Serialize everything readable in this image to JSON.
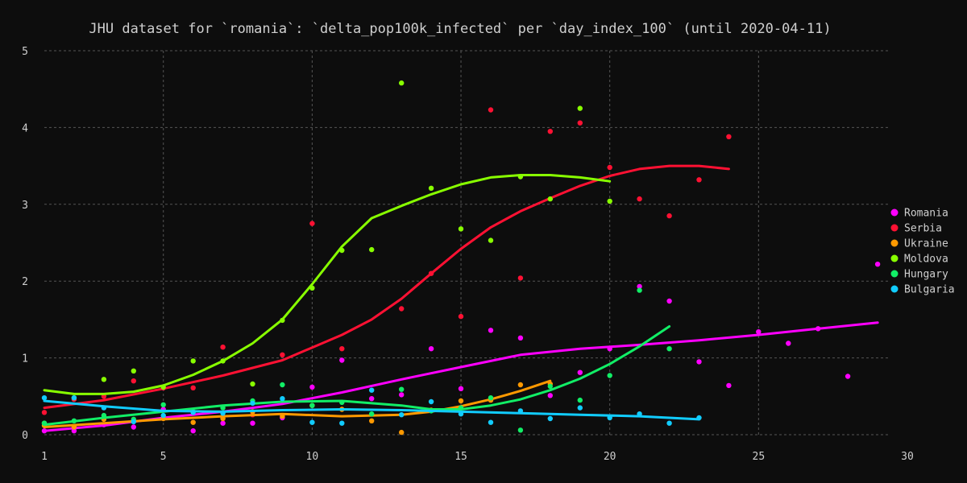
{
  "chart_data": {
    "type": "scatter",
    "title": "JHU dataset for `romania`: `delta_pop100k_infected` per `day_index_100` (until 2020-04-11)",
    "xlim": [
      1,
      30
    ],
    "ylim": [
      0,
      5
    ],
    "x_ticks": [
      1,
      5,
      10,
      15,
      20,
      25,
      30
    ],
    "y_ticks": [
      0,
      1,
      2,
      3,
      4,
      5
    ],
    "grid": true,
    "legend_position": "right",
    "series": [
      {
        "name": "Romania",
        "color": "#ff00ff",
        "points": [
          [
            1,
            0.05
          ],
          [
            2,
            0.05
          ],
          [
            3,
            0.13
          ],
          [
            4,
            0.1
          ],
          [
            5,
            0.33
          ],
          [
            6,
            0.05
          ],
          [
            7,
            0.15
          ],
          [
            8,
            0.15
          ],
          [
            9,
            0.22
          ],
          [
            10,
            0.62
          ],
          [
            11,
            0.97
          ],
          [
            12,
            0.47
          ],
          [
            13,
            0.52
          ],
          [
            14,
            1.12
          ],
          [
            15,
            0.6
          ],
          [
            16,
            1.36
          ],
          [
            17,
            1.26
          ],
          [
            18,
            0.51
          ],
          [
            19,
            0.81
          ],
          [
            20,
            1.12
          ],
          [
            21,
            1.93
          ],
          [
            22,
            1.74
          ],
          [
            23,
            0.95
          ],
          [
            24,
            0.64
          ],
          [
            25,
            1.34
          ],
          [
            26,
            1.19
          ],
          [
            27,
            1.38
          ],
          [
            28,
            0.76
          ],
          [
            29,
            2.22
          ]
        ],
        "trend": [
          [
            1,
            0.05
          ],
          [
            3,
            0.12
          ],
          [
            5,
            0.22
          ],
          [
            7,
            0.3
          ],
          [
            9,
            0.4
          ],
          [
            11,
            0.55
          ],
          [
            13,
            0.72
          ],
          [
            15,
            0.88
          ],
          [
            17,
            1.04
          ],
          [
            19,
            1.12
          ],
          [
            21,
            1.17
          ],
          [
            23,
            1.23
          ],
          [
            25,
            1.3
          ],
          [
            27,
            1.38
          ],
          [
            29,
            1.46
          ]
        ]
      },
      {
        "name": "Serbia",
        "color": "#ff1133",
        "points": [
          [
            1,
            0.29
          ],
          [
            2,
            0.46
          ],
          [
            3,
            0.5
          ],
          [
            4,
            0.7
          ],
          [
            5,
            0.61
          ],
          [
            6,
            0.61
          ],
          [
            7,
            1.14
          ],
          [
            8,
            0.26
          ],
          [
            9,
            1.04
          ],
          [
            10,
            2.75
          ],
          [
            11,
            1.12
          ],
          [
            13,
            1.64
          ],
          [
            14,
            2.1
          ],
          [
            15,
            1.54
          ],
          [
            16,
            4.23
          ],
          [
            17,
            2.04
          ],
          [
            18,
            3.95
          ],
          [
            19,
            4.06
          ],
          [
            20,
            3.48
          ],
          [
            21,
            3.07
          ],
          [
            22,
            2.85
          ],
          [
            23,
            3.32
          ],
          [
            24,
            3.88
          ]
        ],
        "trend": [
          [
            1,
            0.35
          ],
          [
            3,
            0.45
          ],
          [
            5,
            0.6
          ],
          [
            7,
            0.77
          ],
          [
            9,
            0.97
          ],
          [
            11,
            1.3
          ],
          [
            12,
            1.5
          ],
          [
            13,
            1.77
          ],
          [
            14,
            2.1
          ],
          [
            15,
            2.42
          ],
          [
            16,
            2.7
          ],
          [
            17,
            2.91
          ],
          [
            18,
            3.08
          ],
          [
            19,
            3.24
          ],
          [
            20,
            3.37
          ],
          [
            21,
            3.46
          ],
          [
            22,
            3.5
          ],
          [
            23,
            3.5
          ],
          [
            24,
            3.46
          ]
        ]
      },
      {
        "name": "Ukraine",
        "color": "#ff9900",
        "points": [
          [
            1,
            0.12
          ],
          [
            2,
            0.1
          ],
          [
            3,
            0.2
          ],
          [
            4,
            0.19
          ],
          [
            5,
            0.21
          ],
          [
            6,
            0.16
          ],
          [
            7,
            0.21
          ],
          [
            8,
            0.3
          ],
          [
            9,
            0.24
          ],
          [
            10,
            0.38
          ],
          [
            11,
            0.33
          ],
          [
            12,
            0.18
          ],
          [
            13,
            0.03
          ],
          [
            14,
            0.32
          ],
          [
            15,
            0.44
          ],
          [
            16,
            0.45
          ],
          [
            17,
            0.65
          ],
          [
            18,
            0.66
          ]
        ],
        "trend": [
          [
            1,
            0.1
          ],
          [
            3,
            0.15
          ],
          [
            5,
            0.2
          ],
          [
            7,
            0.24
          ],
          [
            9,
            0.27
          ],
          [
            11,
            0.24
          ],
          [
            13,
            0.26
          ],
          [
            14,
            0.3
          ],
          [
            15,
            0.37
          ],
          [
            16,
            0.46
          ],
          [
            17,
            0.57
          ],
          [
            18,
            0.7
          ]
        ]
      },
      {
        "name": "Moldova",
        "color": "#88ff00",
        "points": [
          [
            1,
            0.15
          ],
          [
            2,
            0.48
          ],
          [
            3,
            0.72
          ],
          [
            4,
            0.83
          ],
          [
            5,
            0.62
          ],
          [
            6,
            0.96
          ],
          [
            7,
            0.96
          ],
          [
            8,
            0.66
          ],
          [
            9,
            1.49
          ],
          [
            10,
            1.91
          ],
          [
            11,
            2.4
          ],
          [
            12,
            2.41
          ],
          [
            13,
            4.58
          ],
          [
            14,
            3.21
          ],
          [
            15,
            2.68
          ],
          [
            16,
            2.53
          ],
          [
            17,
            3.36
          ],
          [
            18,
            3.07
          ],
          [
            19,
            4.25
          ],
          [
            20,
            3.04
          ]
        ],
        "trend": [
          [
            1,
            0.58
          ],
          [
            2,
            0.53
          ],
          [
            3,
            0.53
          ],
          [
            4,
            0.56
          ],
          [
            5,
            0.64
          ],
          [
            6,
            0.78
          ],
          [
            7,
            0.96
          ],
          [
            8,
            1.19
          ],
          [
            9,
            1.5
          ],
          [
            10,
            1.96
          ],
          [
            11,
            2.45
          ],
          [
            12,
            2.82
          ],
          [
            13,
            2.98
          ],
          [
            14,
            3.13
          ],
          [
            15,
            3.26
          ],
          [
            16,
            3.35
          ],
          [
            17,
            3.38
          ],
          [
            18,
            3.38
          ],
          [
            19,
            3.35
          ],
          [
            20,
            3.3
          ]
        ]
      },
      {
        "name": "Hungary",
        "color": "#11ee66",
        "points": [
          [
            1,
            0.15
          ],
          [
            2,
            0.18
          ],
          [
            3,
            0.25
          ],
          [
            4,
            0.2
          ],
          [
            5,
            0.39
          ],
          [
            6,
            0.3
          ],
          [
            7,
            0.35
          ],
          [
            8,
            0.44
          ],
          [
            9,
            0.65
          ],
          [
            10,
            0.38
          ],
          [
            11,
            0.42
          ],
          [
            12,
            0.27
          ],
          [
            13,
            0.59
          ],
          [
            14,
            0.31
          ],
          [
            15,
            0.35
          ],
          [
            16,
            0.48
          ],
          [
            17,
            0.06
          ],
          [
            18,
            0.63
          ],
          [
            19,
            0.45
          ],
          [
            20,
            0.77
          ],
          [
            21,
            1.88
          ],
          [
            22,
            1.12
          ]
        ],
        "trend": [
          [
            1,
            0.13
          ],
          [
            3,
            0.22
          ],
          [
            5,
            0.3
          ],
          [
            7,
            0.38
          ],
          [
            9,
            0.43
          ],
          [
            11,
            0.44
          ],
          [
            13,
            0.38
          ],
          [
            14,
            0.33
          ],
          [
            15,
            0.33
          ],
          [
            16,
            0.38
          ],
          [
            17,
            0.46
          ],
          [
            18,
            0.58
          ],
          [
            19,
            0.73
          ],
          [
            20,
            0.92
          ],
          [
            21,
            1.15
          ],
          [
            22,
            1.41
          ]
        ]
      },
      {
        "name": "Bulgaria",
        "color": "#11ccff",
        "points": [
          [
            1,
            0.48
          ],
          [
            2,
            0.48
          ],
          [
            3,
            0.35
          ],
          [
            4,
            0.17
          ],
          [
            5,
            0.25
          ],
          [
            6,
            0.29
          ],
          [
            7,
            0.28
          ],
          [
            8,
            0.41
          ],
          [
            9,
            0.47
          ],
          [
            10,
            0.16
          ],
          [
            11,
            0.15
          ],
          [
            12,
            0.58
          ],
          [
            13,
            0.26
          ],
          [
            14,
            0.43
          ],
          [
            15,
            0.27
          ],
          [
            16,
            0.16
          ],
          [
            17,
            0.31
          ],
          [
            18,
            0.21
          ],
          [
            19,
            0.35
          ],
          [
            20,
            0.22
          ],
          [
            21,
            0.27
          ],
          [
            22,
            0.15
          ],
          [
            23,
            0.22
          ]
        ],
        "trend": [
          [
            1,
            0.44
          ],
          [
            3,
            0.37
          ],
          [
            5,
            0.31
          ],
          [
            7,
            0.3
          ],
          [
            9,
            0.32
          ],
          [
            11,
            0.33
          ],
          [
            13,
            0.32
          ],
          [
            15,
            0.3
          ],
          [
            17,
            0.28
          ],
          [
            19,
            0.26
          ],
          [
            21,
            0.24
          ],
          [
            23,
            0.2
          ]
        ]
      }
    ]
  }
}
